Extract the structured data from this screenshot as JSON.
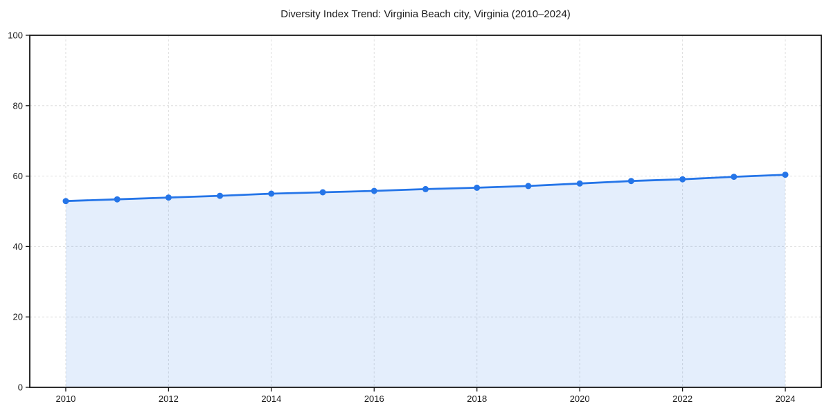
{
  "chart_data": {
    "type": "area",
    "title": "Diversity Index Trend: Virginia Beach city, Virginia (2010–2024)",
    "xlabel": "",
    "ylabel": "",
    "x": [
      2010,
      2011,
      2012,
      2013,
      2014,
      2015,
      2016,
      2017,
      2018,
      2019,
      2020,
      2021,
      2022,
      2023,
      2024
    ],
    "series": [
      {
        "name": "Diversity Index",
        "values": [
          52.9,
          53.4,
          53.9,
          54.4,
          55.0,
          55.4,
          55.8,
          56.3,
          56.7,
          57.2,
          57.9,
          58.6,
          59.1,
          59.8,
          60.4
        ]
      }
    ],
    "xlim": [
      2009.3,
      2024.7
    ],
    "ylim": [
      0,
      100
    ],
    "x_ticks": [
      2010,
      2012,
      2014,
      2016,
      2018,
      2020,
      2022,
      2024
    ],
    "y_ticks": [
      0,
      20,
      40,
      60,
      80,
      100
    ],
    "grid": true,
    "grid_style": "dashed",
    "legend": "none",
    "colors": {
      "line": "#2575e8",
      "marker": "#2575e8",
      "fill": "rgba(37,117,232,0.12)",
      "grid": "#dedede",
      "spine": "#141414",
      "tick": "#141414",
      "tick_label": "#1a1a1a",
      "title": "#1a1a1a",
      "background": "#ffffff"
    }
  }
}
